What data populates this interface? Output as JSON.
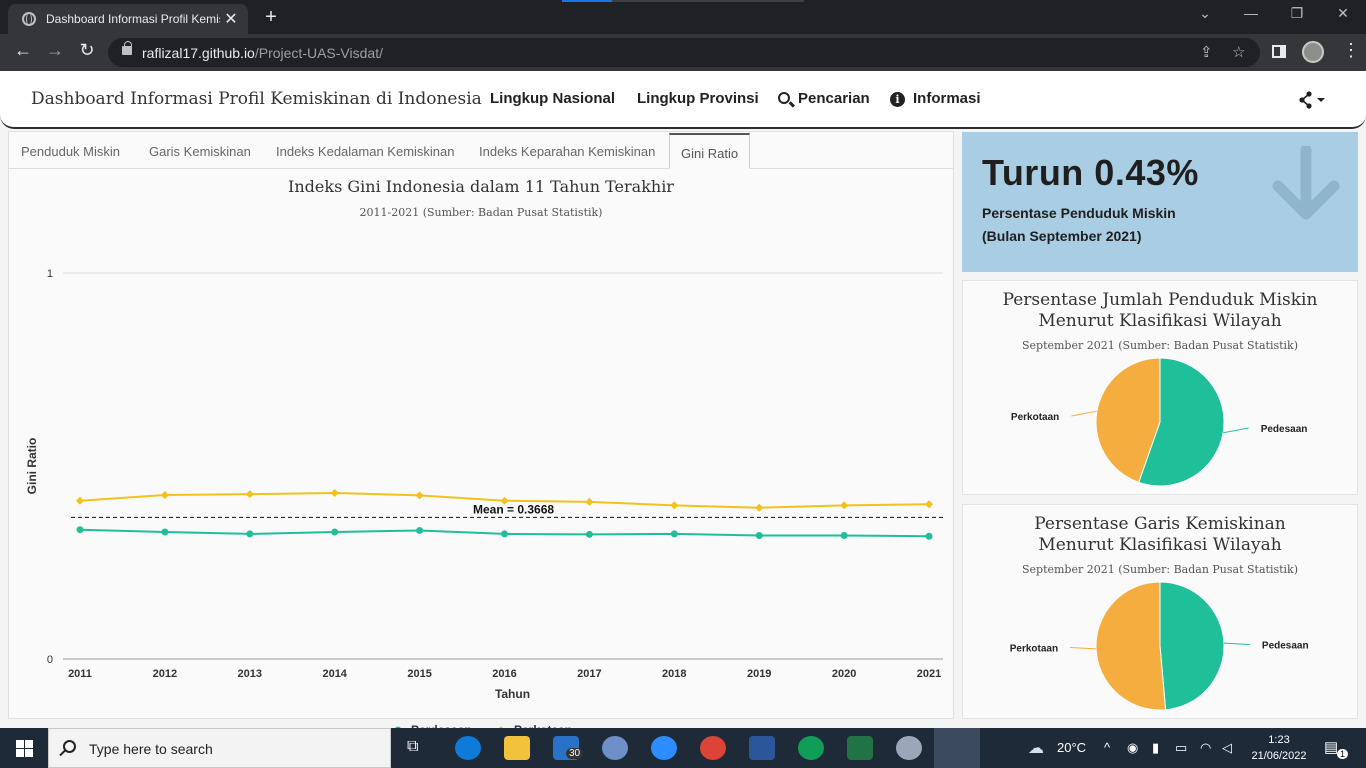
{
  "browser": {
    "tab_title": "Dashboard Informasi Profil Kemis",
    "url_host": "raflizal17.github.io",
    "url_path": "/Project-UAS-Visdat/"
  },
  "navbar": {
    "brand": "Dashboard Informasi Profil Kemiskinan di Indonesia",
    "links": [
      "Lingkup Nasional",
      "Lingkup Provinsi",
      "Pencarian",
      "Informasi"
    ]
  },
  "chart_tabs": [
    "Penduduk Miskin",
    "Garis Kemiskinan",
    "Indeks Kedalaman Kemiskinan",
    "Indeks Keparahan Kemiskinan",
    "Gini Ratio"
  ],
  "stat": {
    "value": "Turun 0.43%",
    "line1": "Persentase Penduduk Miskin",
    "line2": "(Bulan September 2021)"
  },
  "taskbar": {
    "search_placeholder": "Type here to search",
    "mail_badge": "30",
    "temperature": "20°C",
    "time": "1:23",
    "date": "21/06/2022",
    "notif_count": "1"
  },
  "colors": {
    "perdesaan": "#1fbf9a",
    "perkotaan": "#f2c21b",
    "pie_pedesaan": "#1fbf9a",
    "pie_perkotaan": "#f5ad3f",
    "stat_bg": "#a9cde3"
  },
  "chart_data": [
    {
      "type": "line",
      "title": "Indeks Gini Indonesia dalam 11 Tahun Terakhir",
      "subtitle": "2011-2021 (Sumber: Badan Pusat Statistik)",
      "xlabel": "Tahun",
      "ylabel": "Gini Ratio",
      "ylim": [
        0,
        1
      ],
      "yticks": [
        "0",
        "1"
      ],
      "x": [
        "2011",
        "2012",
        "2013",
        "2014",
        "2015",
        "2016",
        "2017",
        "2018",
        "2019",
        "2020",
        "2021"
      ],
      "series": [
        {
          "name": "Perdesaan",
          "values": [
            0.335,
            0.329,
            0.324,
            0.329,
            0.333,
            0.324,
            0.323,
            0.324,
            0.32,
            0.32,
            0.318
          ]
        },
        {
          "name": "Perkotaan",
          "values": [
            0.41,
            0.425,
            0.427,
            0.43,
            0.424,
            0.41,
            0.407,
            0.398,
            0.392,
            0.398,
            0.401
          ]
        }
      ],
      "mean_line": {
        "value": 0.3668,
        "label": "Mean = 0.3668"
      },
      "legend": "bottom",
      "grid": true
    },
    {
      "type": "pie",
      "title": [
        "Persentase Jumlah Penduduk Miskin",
        "Menurut Klasifikasi Wilayah"
      ],
      "subtitle": "September 2021 (Sumber: Badan Pusat Statistik)",
      "slices": [
        {
          "label": "Pedesaan",
          "value": 55.4
        },
        {
          "label": "Perkotaan",
          "value": 44.6
        }
      ]
    },
    {
      "type": "pie",
      "title": [
        "Persentase Garis Kemiskinan",
        "Menurut Klasifikasi Wilayah"
      ],
      "subtitle": "September 2021 (Sumber: Badan Pusat Statistik)",
      "slices": [
        {
          "label": "Pedesaan",
          "value": 48.6
        },
        {
          "label": "Perkotaan",
          "value": 51.4
        }
      ]
    }
  ]
}
